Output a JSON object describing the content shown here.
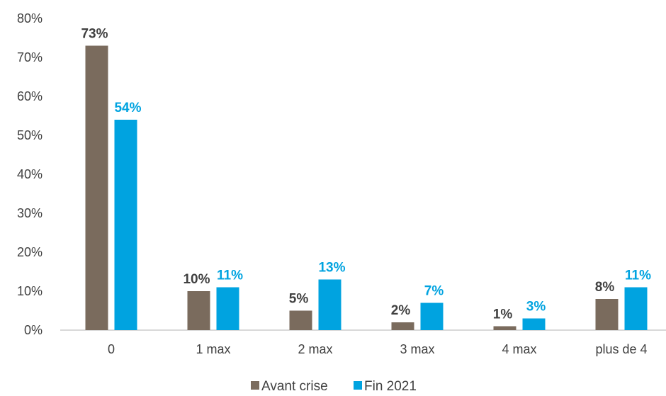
{
  "chart_data": {
    "type": "bar",
    "categories": [
      "0",
      "1 max",
      "2 max",
      "3 max",
      "4 max",
      "plus de 4"
    ],
    "series": [
      {
        "name": "Avant crise",
        "values": [
          73,
          10,
          5,
          2,
          1,
          8
        ],
        "labels": [
          "73%",
          "10%",
          "5%",
          "2%",
          "1%",
          "8%"
        ]
      },
      {
        "name": "Fin 2021",
        "values": [
          54,
          11,
          13,
          7,
          3,
          11
        ],
        "labels": [
          "54%",
          "11%",
          "13%",
          "7%",
          "3%",
          "11%"
        ]
      }
    ],
    "y_ticks": [
      "0%",
      "10%",
      "20%",
      "30%",
      "40%",
      "50%",
      "60%",
      "70%",
      "80%"
    ],
    "ylim": [
      0,
      80
    ],
    "grid": false,
    "legend": "bottom-center"
  },
  "colors": {
    "avant_crise": "#7a6b5d",
    "fin_2021": "#00a3e0",
    "label_dark": "#404040",
    "axis": "#d9d9d9"
  }
}
